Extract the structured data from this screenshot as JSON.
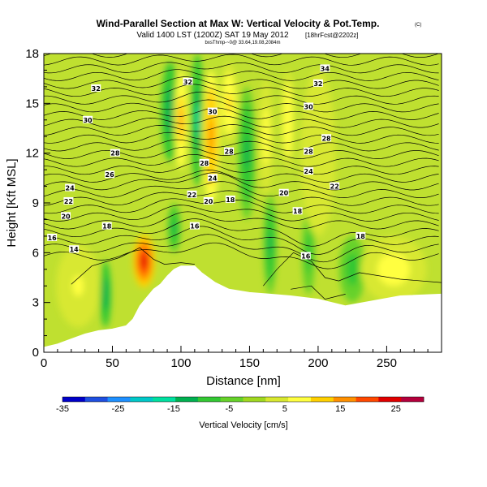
{
  "chart_data": {
    "type": "heatmap",
    "title": "Wind-Parallel Section at Max W: Vertical Velocity & Pot.Temp.",
    "title_mark": "(C)",
    "subtitle_valid": "Valid 1400 LST (1200Z) SAT 19 May 2012",
    "subtitle_run": "[18hrFcst@2202z]",
    "subtitle_loc": "bxsThmp-~0@ 33.64,19.08,2084m",
    "xlabel": "Distance [nm]",
    "ylabel": "Height [Kft MSL]",
    "xlim": [
      0,
      290
    ],
    "ylim": [
      0,
      18
    ],
    "x_ticks": [
      0,
      50,
      100,
      150,
      200,
      250
    ],
    "y_ticks": [
      0,
      3,
      6,
      9,
      12,
      15,
      18
    ],
    "terrain": [
      [
        0,
        0.3
      ],
      [
        10,
        0.5
      ],
      [
        20,
        0.8
      ],
      [
        30,
        1.1
      ],
      [
        40,
        1.3
      ],
      [
        50,
        1.4
      ],
      [
        60,
        1.6
      ],
      [
        65,
        2.0
      ],
      [
        70,
        2.8
      ],
      [
        75,
        3.3
      ],
      [
        80,
        3.8
      ],
      [
        85,
        4.1
      ],
      [
        90,
        4.6
      ],
      [
        95,
        5.0
      ],
      [
        100,
        5.2
      ],
      [
        110,
        5.2
      ],
      [
        115,
        4.8
      ],
      [
        125,
        4.2
      ],
      [
        135,
        3.8
      ],
      [
        150,
        3.6
      ],
      [
        165,
        3.5
      ],
      [
        180,
        3.4
      ],
      [
        200,
        3.2
      ],
      [
        220,
        2.8
      ],
      [
        240,
        3.1
      ],
      [
        260,
        3.4
      ],
      [
        290,
        3.5
      ]
    ],
    "updrafts": [
      {
        "x": 73,
        "y": 5.5,
        "w": 25,
        "sx": 5,
        "sy": 1.6
      },
      {
        "x": 100,
        "y": 14.0,
        "w": 14,
        "sx": 3,
        "sy": 3.0
      },
      {
        "x": 122,
        "y": 13.0,
        "w": 15,
        "sx": 4,
        "sy": 4.0
      },
      {
        "x": 135,
        "y": 15.0,
        "w": 10,
        "sx": 4,
        "sy": 2.5
      },
      {
        "x": 162,
        "y": 13.0,
        "w": 8,
        "sx": 3.5,
        "sy": 3.5
      },
      {
        "x": 178,
        "y": 14.0,
        "w": 9,
        "sx": 3,
        "sy": 3.0
      },
      {
        "x": 200,
        "y": 12.0,
        "w": 4,
        "sx": 8,
        "sy": 5
      },
      {
        "x": 25,
        "y": 4.0,
        "w": 6,
        "sx": 10,
        "sy": 2.5
      },
      {
        "x": 255,
        "y": 5.0,
        "w": 7,
        "sx": 15,
        "sy": 2
      }
    ],
    "downdrafts": [
      {
        "x": 92,
        "y": 14.5,
        "w": -14,
        "sx": 4,
        "sy": 3.0
      },
      {
        "x": 112,
        "y": 14.0,
        "w": -15,
        "sx": 3,
        "sy": 4.0
      },
      {
        "x": 148,
        "y": 12.0,
        "w": -12,
        "sx": 4,
        "sy": 4.0
      },
      {
        "x": 45,
        "y": 3.5,
        "w": -14,
        "sx": 2.5,
        "sy": 2.0
      },
      {
        "x": 95,
        "y": 7.5,
        "w": -11,
        "sx": 3,
        "sy": 1.5
      },
      {
        "x": 165,
        "y": 6.5,
        "w": -12,
        "sx": 3,
        "sy": 3.0
      },
      {
        "x": 193,
        "y": 6.0,
        "w": -10,
        "sx": 3,
        "sy": 2.5
      },
      {
        "x": 225,
        "y": 5.0,
        "w": -8,
        "sx": 6,
        "sy": 2
      }
    ],
    "isentrope_labels": [
      {
        "text": "34",
        "x": 205,
        "y": 17.1
      },
      {
        "text": "32",
        "x": 38,
        "y": 15.9
      },
      {
        "text": "32",
        "x": 200,
        "y": 16.2
      },
      {
        "text": "32",
        "x": 105,
        "y": 16.3
      },
      {
        "text": "30",
        "x": 32,
        "y": 14.0
      },
      {
        "text": "30",
        "x": 193,
        "y": 14.8
      },
      {
        "text": "30",
        "x": 123,
        "y": 14.5
      },
      {
        "text": "28",
        "x": 52,
        "y": 12.0
      },
      {
        "text": "28",
        "x": 135,
        "y": 12.1
      },
      {
        "text": "28",
        "x": 193,
        "y": 12.1
      },
      {
        "text": "28",
        "x": 206,
        "y": 12.9
      },
      {
        "text": "28",
        "x": 117,
        "y": 11.4
      },
      {
        "text": "26",
        "x": 48,
        "y": 10.7
      },
      {
        "text": "24",
        "x": 19,
        "y": 9.9
      },
      {
        "text": "24",
        "x": 123,
        "y": 10.5
      },
      {
        "text": "24",
        "x": 193,
        "y": 10.9
      },
      {
        "text": "22",
        "x": 18,
        "y": 9.1
      },
      {
        "text": "22",
        "x": 108,
        "y": 9.5
      },
      {
        "text": "22",
        "x": 212,
        "y": 10.0
      },
      {
        "text": "20",
        "x": 16,
        "y": 8.2
      },
      {
        "text": "20",
        "x": 120,
        "y": 9.1
      },
      {
        "text": "20",
        "x": 175,
        "y": 9.6
      },
      {
        "text": "18",
        "x": 46,
        "y": 7.6
      },
      {
        "text": "18",
        "x": 136,
        "y": 9.2
      },
      {
        "text": "18",
        "x": 185,
        "y": 8.5
      },
      {
        "text": "18",
        "x": 231,
        "y": 7.0
      },
      {
        "text": "16",
        "x": 6,
        "y": 6.9
      },
      {
        "text": "16",
        "x": 110,
        "y": 7.6
      },
      {
        "text": "16",
        "x": 191,
        "y": 5.8
      },
      {
        "text": "14",
        "x": 22,
        "y": 6.2
      }
    ],
    "colorbar": {
      "label": "Vertical Velocity [cm/s]",
      "min": -35,
      "max": 30,
      "ticks": [
        -35,
        -25,
        -15,
        -5,
        5,
        15,
        25
      ],
      "colors": [
        "#0000c8",
        "#1f4fe0",
        "#1e90ff",
        "#00c8c8",
        "#00e0a0",
        "#00b050",
        "#33c833",
        "#66d22a",
        "#a0d820",
        "#d8e830",
        "#ffff40",
        "#ffd000",
        "#ff9000",
        "#ff4800",
        "#e00000",
        "#b4003c"
      ]
    }
  }
}
